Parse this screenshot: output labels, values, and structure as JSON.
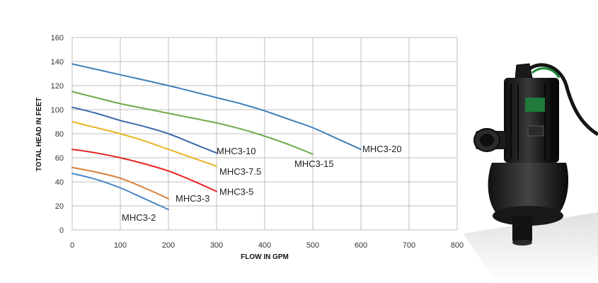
{
  "chart_data": {
    "type": "line",
    "title": "",
    "xlabel": "FLOW IN GPM",
    "ylabel": "TOTAL HEAD IN FEET",
    "xlim": [
      0,
      800
    ],
    "ylim": [
      0,
      160
    ],
    "xticks": [
      0,
      100,
      200,
      300,
      400,
      500,
      600,
      700,
      800
    ],
    "yticks": [
      0,
      20,
      40,
      60,
      80,
      100,
      120,
      140,
      160
    ],
    "grid": true,
    "legend": "inline labels at line ends",
    "series": [
      {
        "name": "MHC3-2",
        "color": "#4a86c5",
        "x": [
          0,
          50,
          100,
          150,
          200
        ],
        "y": [
          47,
          42,
          35,
          26,
          17
        ]
      },
      {
        "name": "MHC3-3",
        "color": "#d7803a",
        "x": [
          0,
          50,
          100,
          150,
          200
        ],
        "y": [
          52,
          48,
          43,
          35,
          26
        ]
      },
      {
        "name": "MHC3-5",
        "color": "#e52424",
        "x": [
          0,
          50,
          100,
          150,
          200,
          250,
          300
        ],
        "y": [
          67,
          64,
          60,
          55,
          49,
          41,
          32
        ]
      },
      {
        "name": "MHC3-7.5",
        "color": "#e8b422",
        "x": [
          0,
          50,
          100,
          150,
          200,
          250,
          300
        ],
        "y": [
          90,
          85,
          80,
          74,
          67,
          60,
          53
        ]
      },
      {
        "name": "MHC3-10",
        "color": "#3a66a8",
        "x": [
          0,
          50,
          100,
          150,
          200,
          250,
          300
        ],
        "y": [
          102,
          97,
          91,
          86,
          80,
          72,
          64
        ]
      },
      {
        "name": "MHC3-15",
        "color": "#6ea84a",
        "x": [
          0,
          50,
          100,
          150,
          200,
          250,
          300,
          350,
          400,
          450,
          500
        ],
        "y": [
          115,
          110,
          105,
          101,
          97,
          93,
          89,
          84,
          78,
          71,
          63
        ]
      },
      {
        "name": "MHC3-20",
        "color": "#3f7fb8",
        "x": [
          0,
          100,
          200,
          300,
          350,
          400,
          450,
          500,
          550,
          600
        ],
        "y": [
          138,
          129,
          120,
          110,
          105,
          99,
          92,
          85,
          76,
          67
        ]
      }
    ]
  },
  "product_image": {
    "name": "submersible-pump"
  }
}
